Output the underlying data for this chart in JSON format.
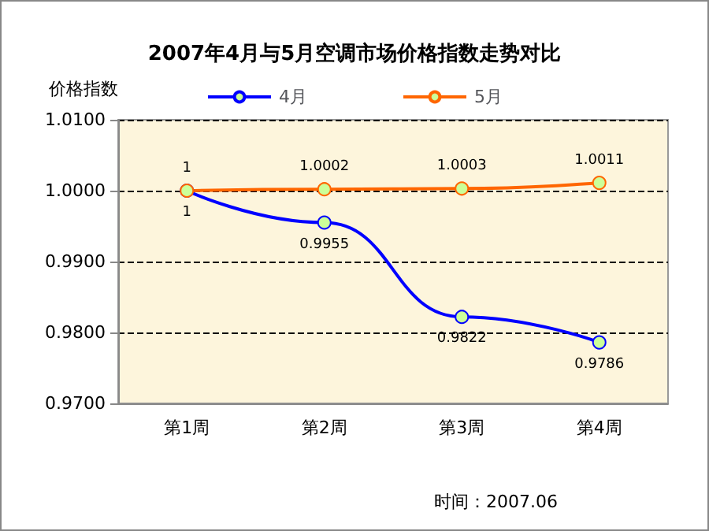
{
  "chart_data": {
    "type": "line",
    "title": "2007年4月与5月空调市场价格指数走势对比",
    "ylabel": "价格指数",
    "categories": [
      "第1周",
      "第2周",
      "第3周",
      "第4周"
    ],
    "series": [
      {
        "name": "4月",
        "color": "#0000ff",
        "values": [
          1,
          0.9955,
          0.9822,
          0.9786
        ]
      },
      {
        "name": "5月",
        "color": "#ff6600",
        "values": [
          1,
          1.0002,
          1.0003,
          1.0011
        ]
      }
    ],
    "ylim": [
      0.97,
      1.01
    ],
    "yticks": [
      {
        "value": 0.97,
        "label": "0.9700"
      },
      {
        "value": 0.98,
        "label": "0.9800"
      },
      {
        "value": 0.99,
        "label": "0.9900"
      },
      {
        "value": 1.0,
        "label": "1.0000"
      },
      {
        "value": 1.01,
        "label": "1.0100"
      }
    ],
    "grid": "y",
    "legend": "top",
    "marker": "circle",
    "line_style": "solid",
    "data_labels": true,
    "annotations": [
      "时间：2007.06"
    ]
  }
}
